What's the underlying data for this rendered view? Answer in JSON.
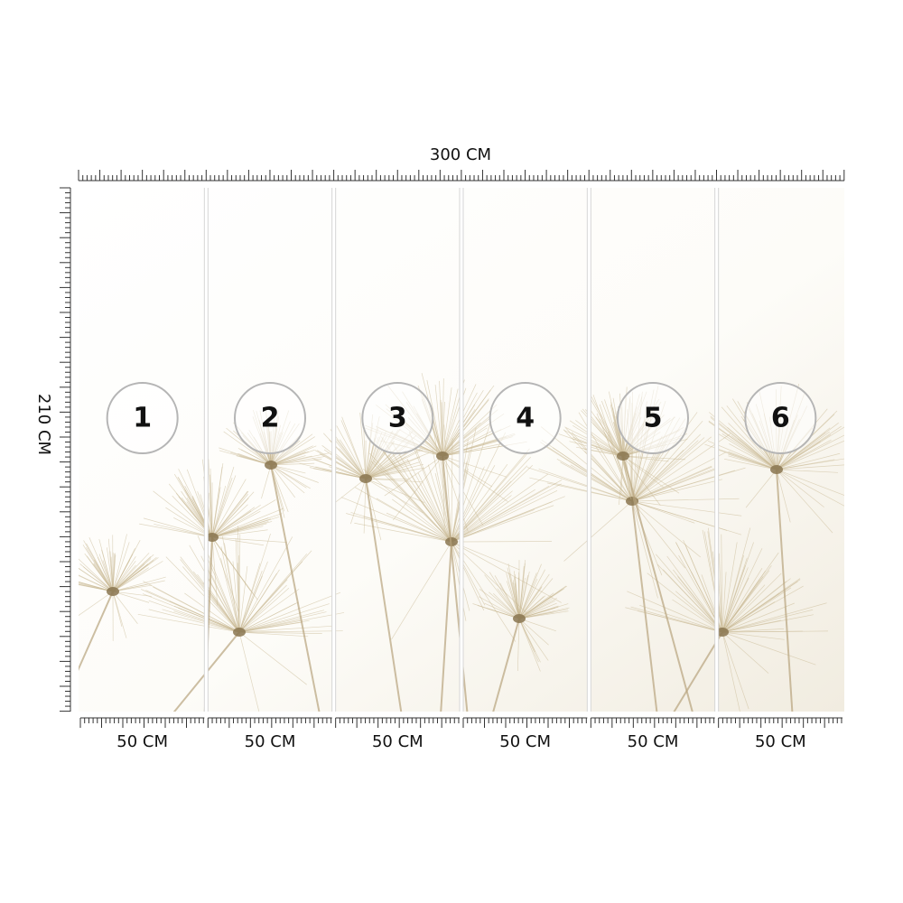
{
  "dimensions": {
    "width_label": "300 CM",
    "height_label": "210 CM"
  },
  "panels": [
    {
      "number": "1",
      "width_label": "50 CM"
    },
    {
      "number": "2",
      "width_label": "50 CM"
    },
    {
      "number": "3",
      "width_label": "50 CM"
    },
    {
      "number": "4",
      "width_label": "50 CM"
    },
    {
      "number": "5",
      "width_label": "50 CM"
    },
    {
      "number": "6",
      "width_label": "50 CM"
    }
  ]
}
